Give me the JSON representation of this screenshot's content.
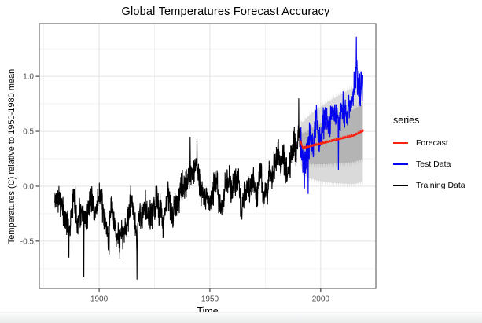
{
  "chart": {
    "title": "Global Temperatures Forecast Accuracy",
    "x_label": "Time",
    "y_label": "Temperatures (C) relative to 1950-1980 mean",
    "legend": {
      "title": "series",
      "items": [
        {
          "label": "Forecast",
          "color": "#f8220e"
        },
        {
          "label": "Test Data",
          "color": "#0404ee"
        },
        {
          "label": "Training Data",
          "color": "#000000"
        }
      ]
    }
  },
  "style": {
    "panel_border": "#6b6b6b",
    "grid_major": "#e4e4e4",
    "grid_minor": "#f2f2f2",
    "tick_color": "#333333",
    "tick_label_color": "#4d4d4d",
    "band_outer_color": "#dadada",
    "band_inner_color": "#b4b4b4",
    "background": "#ffffff"
  },
  "chart_data": {
    "type": "line",
    "title": "Global Temperatures Forecast Accuracy",
    "xlabel": "Time",
    "ylabel": "Temperatures (C) relative to 1950-1980 mean",
    "xlim": [
      1873.0,
      2024.9
    ],
    "ylim": [
      -0.93,
      1.48
    ],
    "grid": true,
    "legend_position": "right",
    "x_ticks": [
      {
        "v": 1900,
        "label": "1900"
      },
      {
        "v": 1950,
        "label": "1950"
      },
      {
        "v": 2000,
        "label": "2000"
      }
    ],
    "x_minor_ticks": [
      1875,
      1925,
      1975
    ],
    "y_ticks": [
      {
        "v": -0.5,
        "label": "-0.5"
      },
      {
        "v": 0.0,
        "label": "0.0"
      },
      {
        "v": 0.5,
        "label": "0.5"
      },
      {
        "v": 1.0,
        "label": "1.0"
      }
    ],
    "y_minor_ticks": [
      -0.75,
      -0.25,
      0.25,
      0.75,
      1.25
    ],
    "series": [
      {
        "name": "Training Data",
        "color": "#000000",
        "stroke_width": 1.1,
        "x_start": 1880.0,
        "x_end": 1991.17,
        "resolution": "monthly",
        "noise": 0.165,
        "seed": 42,
        "annual_values": [
          -0.16,
          -0.08,
          -0.1,
          -0.17,
          -0.28,
          -0.32,
          -0.31,
          -0.35,
          -0.17,
          -0.1,
          -0.35,
          -0.22,
          -0.27,
          -0.31,
          -0.3,
          -0.22,
          -0.11,
          -0.11,
          -0.26,
          -0.17,
          -0.07,
          -0.15,
          -0.27,
          -0.36,
          -0.46,
          -0.26,
          -0.22,
          -0.38,
          -0.42,
          -0.48,
          -0.43,
          -0.44,
          -0.35,
          -0.34,
          -0.15,
          -0.13,
          -0.35,
          -0.45,
          -0.29,
          -0.27,
          -0.27,
          -0.18,
          -0.28,
          -0.26,
          -0.27,
          -0.22,
          -0.1,
          -0.21,
          -0.2,
          -0.36,
          -0.15,
          -0.09,
          -0.16,
          -0.29,
          -0.12,
          -0.19,
          -0.14,
          -0.02,
          0.0,
          -0.01,
          0.08,
          0.13,
          0.1,
          0.1,
          0.23,
          0.09,
          -0.07,
          -0.03,
          -0.11,
          -0.11,
          -0.17,
          -0.07,
          0.01,
          0.08,
          -0.13,
          -0.14,
          -0.19,
          0.05,
          0.06,
          0.03,
          -0.03,
          0.05,
          0.03,
          0.06,
          -0.2,
          -0.11,
          -0.06,
          -0.02,
          -0.08,
          0.05,
          0.02,
          -0.08,
          0.01,
          0.16,
          -0.07,
          -0.01,
          -0.1,
          0.18,
          0.07,
          0.17,
          0.26,
          0.32,
          0.14,
          0.31,
          0.16,
          0.12,
          0.18,
          0.33,
          0.4,
          0.29,
          0.44,
          0.42
        ],
        "notable_points": [
          {
            "t": 1886.3,
            "v": -0.65
          },
          {
            "t": 1893.1,
            "v": -0.83
          },
          {
            "t": 1904.5,
            "v": -0.62
          },
          {
            "t": 1909.3,
            "v": -0.66
          },
          {
            "t": 1917.1,
            "v": -0.85
          },
          {
            "t": 1941.1,
            "v": 0.45
          },
          {
            "t": 1944.2,
            "v": 0.43
          },
          {
            "t": 1990.1,
            "v": 0.8
          }
        ]
      },
      {
        "name": "Test Data",
        "color": "#0404ee",
        "stroke_width": 1.2,
        "x_start": 1991.0,
        "x_end": 2019.0,
        "resolution": "monthly",
        "noise": 0.185,
        "seed": 7,
        "annual_values": [
          0.43,
          0.23,
          0.24,
          0.31,
          0.45,
          0.33,
          0.46,
          0.61,
          0.38,
          0.4,
          0.54,
          0.63,
          0.62,
          0.53,
          0.68,
          0.64,
          0.66,
          0.54,
          0.66,
          0.72,
          0.61,
          0.65,
          0.68,
          0.74,
          0.9,
          1.02,
          0.92,
          0.85,
          0.98
        ],
        "notable_points": [
          {
            "t": 1992.7,
            "v": -0.02
          },
          {
            "t": 1994.3,
            "v": -0.07
          },
          {
            "t": 1998.1,
            "v": 0.74
          },
          {
            "t": 2008.0,
            "v": 0.15
          },
          {
            "t": 2016.1,
            "v": 1.36
          },
          {
            "t": 2016.3,
            "v": 1.15
          }
        ]
      },
      {
        "name": "Forecast",
        "color": "#f8220e",
        "stroke_width": 1.9,
        "x_start": 1991.0,
        "x_end": 2019.3,
        "resolution": "monthly",
        "noise": 0,
        "tooth": 0.016,
        "seed": 1,
        "annual_values": [
          0.4,
          0.345,
          0.35,
          0.355,
          0.36,
          0.365,
          0.37,
          0.375,
          0.38,
          0.385,
          0.39,
          0.395,
          0.4,
          0.405,
          0.41,
          0.415,
          0.42,
          0.425,
          0.43,
          0.435,
          0.44,
          0.445,
          0.45,
          0.455,
          0.46,
          0.47,
          0.48,
          0.49,
          0.5
        ],
        "notable_points": []
      }
    ],
    "forecast_band": {
      "t0": 1991.0,
      "t1": 2019.0,
      "outer": {
        "level": "95%",
        "base_half_width": 0.18,
        "growth": 0.28
      },
      "inner": {
        "level": "80%",
        "base_half_width": 0.1,
        "growth": 0.15
      },
      "tooth": 0.04
    }
  }
}
